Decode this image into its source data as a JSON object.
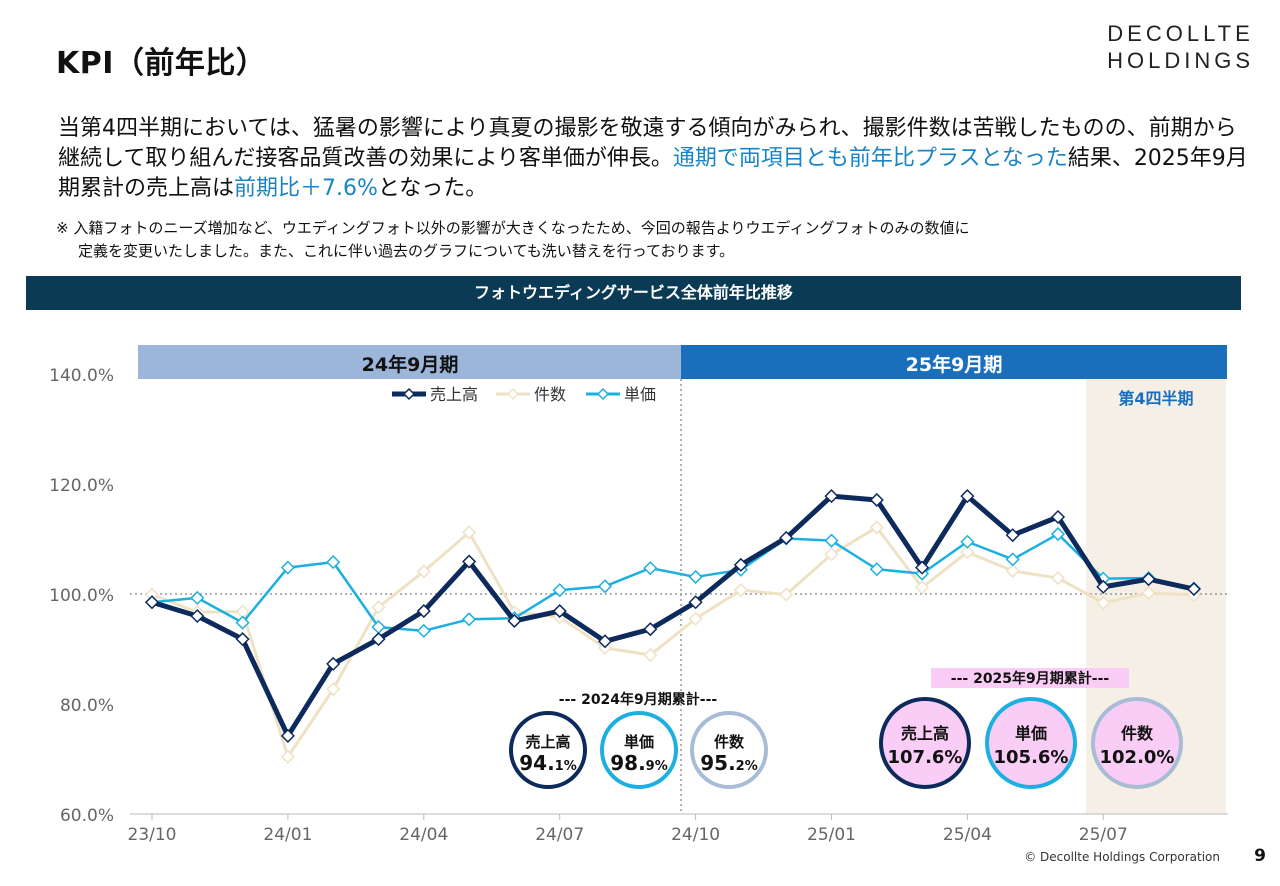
{
  "header": {
    "title": "KPI（前年比）",
    "logo_line1": "DECOLLTE",
    "logo_line2": "HOLDINGS"
  },
  "paragraph": {
    "part1": "当第4四半期においては、猛暑の影響により真夏の撮影を敬遠する傾向がみられ、撮影件数は苦戦したものの、前期から継続して取り組んだ接客品質改善の効果により客単価が伸長。",
    "highlight1": "通期で両項目とも前年比プラスとなった",
    "part2": "結果、2025年9月期累計の売上高は",
    "highlight2": "前期比＋7.6%",
    "part3": "となった。"
  },
  "note": {
    "line1": "※ 入籍フォトのニーズ増加など、ウエディングフォト以外の影響が大きくなったため、今回の報告よりウエディングフォトのみの数値に",
    "line2": "定義を変更いたしました。また、これに伴い過去のグラフについても洗い替えを行っております。"
  },
  "banner": {
    "label": "フォトウエディングサービス全体前年比推移"
  },
  "chart_data": {
    "type": "line",
    "x": [
      "23/10",
      "23/11",
      "23/12",
      "24/01",
      "24/02",
      "24/03",
      "24/04",
      "24/05",
      "24/06",
      "24/07",
      "24/08",
      "24/09",
      "24/10",
      "24/11",
      "24/12",
      "25/01",
      "25/02",
      "25/03",
      "25/04",
      "25/05",
      "25/06",
      "25/07",
      "25/08",
      "25/09"
    ],
    "x_tick_labels": [
      "23/10",
      "24/01",
      "24/04",
      "24/07",
      "24/10",
      "25/01",
      "25/04",
      "25/07"
    ],
    "y_tick_labels": [
      "140.0%",
      "120.0%",
      "100.0%",
      "80.0%",
      "60.0%"
    ],
    "ylim": [
      60,
      140
    ],
    "reference_line": 100,
    "series": [
      {
        "name": "売上高",
        "color": "#0d2a5c",
        "values": [
          98.5,
          96.0,
          91.8,
          74.2,
          87.3,
          91.8,
          96.9,
          105.9,
          95.1,
          96.9,
          91.4,
          93.6,
          98.5,
          105.3,
          110.2,
          117.8,
          117.1,
          104.8,
          117.8,
          110.7,
          114.0,
          101.3,
          102.7,
          100.9
        ]
      },
      {
        "name": "件数",
        "color": "#efe2c4",
        "values": [
          99.9,
          96.7,
          96.8,
          70.4,
          82.7,
          97.6,
          104.1,
          111.2,
          96.7,
          95.8,
          90.2,
          88.9,
          95.5,
          100.7,
          99.9,
          107.2,
          112.1,
          101.2,
          107.6,
          104.2,
          102.9,
          98.4,
          100.2,
          99.8
        ]
      },
      {
        "name": "単価",
        "color": "#1cb0e0",
        "values": [
          98.5,
          99.3,
          94.8,
          104.8,
          105.8,
          94.0,
          93.3,
          95.4,
          95.6,
          100.7,
          101.4,
          104.7,
          103.1,
          104.4,
          110.1,
          109.7,
          104.5,
          103.7,
          109.5,
          106.3,
          110.9,
          102.8,
          102.9,
          101.0
        ]
      }
    ],
    "legend_position": "top-center",
    "periods": [
      {
        "label": "24年9月期",
        "color": "#9cb6d9"
      },
      {
        "label": "25年9月期",
        "color": "#1a6fbd"
      }
    ],
    "quarter_label": "第4四半期",
    "summary_2024": {
      "title": "--- 2024年9月期累計---",
      "items": [
        {
          "label": "売上高",
          "main": "94.",
          "sub": "1%",
          "color": "#0d2a5c"
        },
        {
          "label": "単価",
          "main": "98.",
          "sub": "9%",
          "color": "#1cb0e0"
        },
        {
          "label": "件数",
          "main": "95.",
          "sub": "2%",
          "color": "#a8bcd6"
        }
      ]
    },
    "summary_2025": {
      "title": "--- 2025年9月期累計---",
      "items": [
        {
          "label": "売上高",
          "value": "107.6%",
          "color": "#0d2a5c"
        },
        {
          "label": "単価",
          "value": "105.6%",
          "color": "#1cb0e0"
        },
        {
          "label": "件数",
          "value": "102.0%",
          "color": "#a8bcd6"
        }
      ]
    }
  },
  "footer": {
    "copyright": "© Decollte Holdings Corporation",
    "page": "9"
  }
}
